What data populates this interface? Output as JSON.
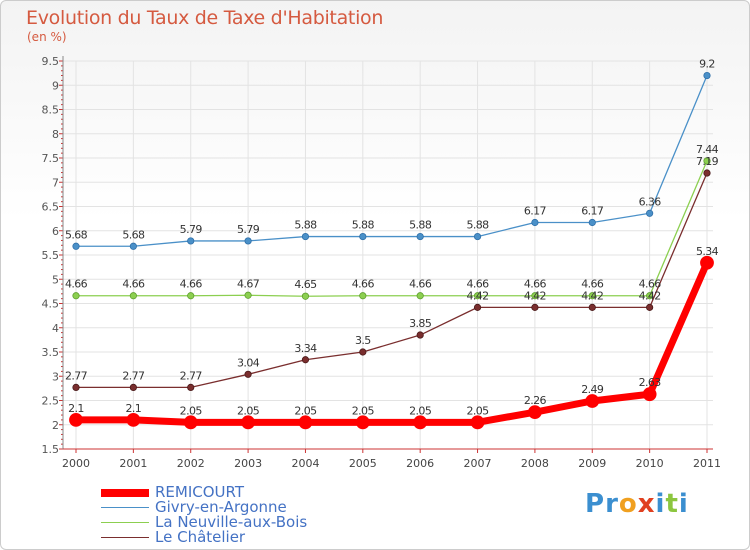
{
  "title": "Evolution du Taux de Taxe d'Habitation",
  "unit": "(en %)",
  "brand": {
    "letters": [
      "P",
      "r",
      "o",
      "x",
      "i",
      "t",
      "i"
    ],
    "colors": [
      "#3b8fd0",
      "#3b8fd0",
      "#f0a020",
      "#e04020",
      "#3b8fd0",
      "#8cc63f",
      "#3b8fd0"
    ]
  },
  "chart_data": {
    "type": "line",
    "title": "Evolution du Taux de Taxe d'Habitation",
    "ylabel": "(en %)",
    "xlabel": "",
    "x": [
      "2000",
      "2001",
      "2002",
      "2003",
      "2004",
      "2005",
      "2006",
      "2007",
      "2008",
      "2009",
      "2010",
      "2011"
    ],
    "ylim": [
      1.5,
      9.5
    ],
    "yticks": [
      "1.5",
      "2",
      "2.5",
      "3",
      "3.5",
      "4",
      "4.5",
      "5",
      "5.5",
      "6",
      "6.5",
      "7",
      "7.5",
      "8",
      "8.5",
      "9",
      "9.5"
    ],
    "grid": true,
    "legend": "bottom-left",
    "series": [
      {
        "name": "REMICOURT",
        "color": "#ff0000",
        "values": [
          2.1,
          2.1,
          2.05,
          2.05,
          2.05,
          2.05,
          2.05,
          2.05,
          2.26,
          2.49,
          2.63,
          5.34
        ],
        "labels": [
          "2.1",
          "2.1",
          "2.05",
          "2.05",
          "2.05",
          "2.05",
          "2.05",
          "2.05",
          "2.26",
          "2.49",
          "2.63",
          "5.34"
        ]
      },
      {
        "name": "Givry-en-Argonne",
        "color": "#4a90c8",
        "values": [
          5.68,
          5.68,
          5.79,
          5.79,
          5.88,
          5.88,
          5.88,
          5.88,
          6.17,
          6.17,
          6.36,
          9.2
        ],
        "labels": [
          "5.68",
          "5.68",
          "5.79",
          "5.79",
          "5.88",
          "5.88",
          "5.88",
          "5.88",
          "6.17",
          "6.17",
          "6.36",
          "9.2"
        ]
      },
      {
        "name": "La Neuville-aux-Bois",
        "color": "#8ccf50",
        "values": [
          4.66,
          4.66,
          4.66,
          4.67,
          4.65,
          4.66,
          4.66,
          4.66,
          4.66,
          4.66,
          4.66,
          7.44
        ],
        "labels": [
          "4.66",
          "4.66",
          "4.66",
          "4.67",
          "4.65",
          "4.66",
          "4.66",
          "4.66",
          "4.66",
          "4.66",
          "4.66",
          "7.44"
        ]
      },
      {
        "name": "Le Châtelier",
        "color": "#7a2e2e",
        "values": [
          2.77,
          2.77,
          2.77,
          3.04,
          3.34,
          3.5,
          3.85,
          4.42,
          4.42,
          4.42,
          4.42,
          7.19
        ],
        "labels": [
          "2.77",
          "2.77",
          "2.77",
          "3.04",
          "3.34",
          "3.5",
          "3.85",
          "4.42",
          "4.42",
          "4.42",
          "4.42",
          "7.19"
        ]
      }
    ]
  }
}
